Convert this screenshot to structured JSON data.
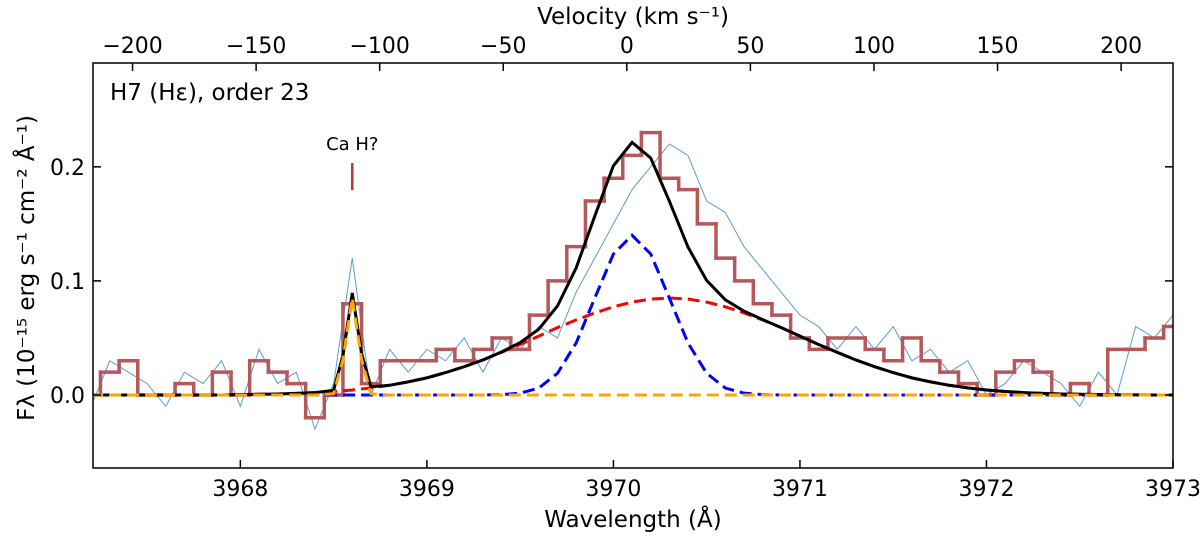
{
  "chart_data": {
    "type": "line",
    "annotation": "H7 (Hε), order 23",
    "xlabel": "Wavelength (Å)",
    "x2label": "Velocity (km s⁻¹)",
    "ylabel": "Fλ (10⁻¹⁵ erg s⁻¹ cm⁻² Å⁻¹)",
    "line_marker": {
      "text": "Ca H?",
      "x": 3968.6,
      "color": "#b03a3a"
    },
    "xlim": [
      3967.21,
      3973.0
    ],
    "xticks": [
      3968,
      3969,
      3970,
      3971,
      3972,
      3973
    ],
    "x2lim": [
      -216,
      221
    ],
    "x2ticks": [
      {
        "value": -200,
        "label": "−200"
      },
      {
        "value": -150,
        "label": "−150"
      },
      {
        "value": -100,
        "label": "−100"
      },
      {
        "value": -50,
        "label": "−50"
      },
      0,
      50,
      100,
      150,
      200
    ],
    "ylim": [
      -0.064,
      0.291
    ],
    "yticks": [
      {
        "value": 0,
        "label": "0.0"
      },
      0.1,
      0.2
    ],
    "observed": [
      {
        "style": "thin",
        "color": "#5b9bd5",
        "x": [
          3967.2,
          3967.3,
          3967.4,
          3967.5,
          3967.6,
          3967.7,
          3967.8,
          3967.9,
          3968.0,
          3968.1,
          3968.2,
          3968.3,
          3968.4,
          3968.5,
          3968.6,
          3968.7,
          3968.8,
          3968.9,
          3969.0,
          3969.1,
          3969.2,
          3969.3,
          3969.4,
          3969.5,
          3969.6,
          3969.7,
          3969.8,
          3969.9,
          3970.0,
          3970.1,
          3970.2,
          3970.3,
          3970.4,
          3970.5,
          3970.6,
          3970.7,
          3970.8,
          3970.9,
          3971.0,
          3971.1,
          3971.2,
          3971.3,
          3971.4,
          3971.5,
          3971.6,
          3971.7,
          3971.8,
          3971.9,
          3972.0,
          3972.1,
          3972.2,
          3972.3,
          3972.4,
          3972.5,
          3972.6,
          3972.7,
          3972.8,
          3972.9,
          3973.0
        ],
        "values": [
          -0.01,
          0.03,
          0.02,
          0.01,
          -0.01,
          0.02,
          0.01,
          0.03,
          -0.01,
          0.04,
          0.01,
          0.02,
          -0.03,
          0.01,
          0.12,
          0.0,
          0.04,
          0.02,
          0.04,
          0.03,
          0.05,
          0.02,
          0.05,
          0.04,
          0.06,
          0.05,
          0.09,
          0.12,
          0.15,
          0.18,
          0.2,
          0.22,
          0.21,
          0.17,
          0.16,
          0.13,
          0.11,
          0.09,
          0.07,
          0.06,
          0.04,
          0.06,
          0.04,
          0.06,
          0.03,
          0.04,
          0.02,
          0.03,
          0.0,
          0.01,
          0.03,
          0.02,
          0.01,
          -0.01,
          0.02,
          0.0,
          0.06,
          0.05,
          0.07
        ]
      },
      {
        "style": "step",
        "color": "#b5585a",
        "x": [
          3967.2,
          3967.3,
          3967.4,
          3967.5,
          3967.6,
          3967.7,
          3967.8,
          3967.9,
          3968.0,
          3968.1,
          3968.2,
          3968.3,
          3968.4,
          3968.5,
          3968.6,
          3968.7,
          3968.8,
          3968.9,
          3969.0,
          3969.1,
          3969.2,
          3969.3,
          3969.4,
          3969.5,
          3969.6,
          3969.7,
          3969.8,
          3969.9,
          3970.0,
          3970.1,
          3970.2,
          3970.3,
          3970.4,
          3970.5,
          3970.6,
          3970.7,
          3970.8,
          3970.9,
          3971.0,
          3971.1,
          3971.2,
          3971.3,
          3971.4,
          3971.5,
          3971.6,
          3971.7,
          3971.8,
          3971.9,
          3972.0,
          3972.1,
          3972.2,
          3972.3,
          3972.4,
          3972.5,
          3972.6,
          3972.7,
          3972.8,
          3972.9,
          3973.0
        ],
        "values": [
          0.0,
          0.02,
          0.03,
          0.0,
          0.0,
          0.01,
          0.0,
          0.02,
          0.0,
          0.03,
          0.02,
          0.01,
          -0.02,
          0.0,
          0.08,
          0.01,
          0.03,
          0.03,
          0.03,
          0.04,
          0.03,
          0.04,
          0.05,
          0.04,
          0.07,
          0.1,
          0.13,
          0.17,
          0.19,
          0.21,
          0.23,
          0.19,
          0.18,
          0.15,
          0.12,
          0.1,
          0.08,
          0.07,
          0.05,
          0.04,
          0.05,
          0.05,
          0.04,
          0.03,
          0.05,
          0.03,
          0.02,
          0.01,
          0.0,
          0.02,
          0.03,
          0.02,
          0.0,
          0.01,
          0.0,
          0.04,
          0.04,
          0.05,
          0.06
        ]
      }
    ],
    "model_x": [
      3967.2,
      3967.3,
      3967.4,
      3967.5,
      3967.6,
      3967.7,
      3967.8,
      3967.9,
      3968.0,
      3968.1,
      3968.2,
      3968.3,
      3968.4,
      3968.5,
      3968.55,
      3968.6,
      3968.65,
      3968.7,
      3968.8,
      3968.9,
      3969.0,
      3969.1,
      3969.2,
      3969.3,
      3969.4,
      3969.5,
      3969.6,
      3969.7,
      3969.8,
      3969.9,
      3970.0,
      3970.1,
      3970.2,
      3970.3,
      3970.4,
      3970.5,
      3970.6,
      3970.7,
      3970.8,
      3970.9,
      3971.0,
      3971.1,
      3971.2,
      3971.3,
      3971.4,
      3971.5,
      3971.6,
      3971.7,
      3971.8,
      3971.9,
      3972.0,
      3972.1,
      3972.2,
      3972.3,
      3972.4,
      3972.5,
      3972.6,
      3972.7,
      3972.8,
      3972.9,
      3973.0
    ],
    "series": [
      {
        "color": "#ff0000",
        "dash": true,
        "values": [
          0,
          0,
          0,
          0,
          0,
          0,
          0,
          0,
          0.0004,
          0.0006,
          0.0009,
          0.0014,
          0.0021,
          0.0031,
          0.0037,
          0.0044,
          0.0053,
          0.0062,
          0.0085,
          0.0115,
          0.015,
          0.0196,
          0.0248,
          0.0307,
          0.0374,
          0.0443,
          0.0516,
          0.059,
          0.0658,
          0.0719,
          0.0773,
          0.0814,
          0.0841,
          0.085,
          0.0841,
          0.0814,
          0.0773,
          0.0719,
          0.0658,
          0.059,
          0.0516,
          0.0443,
          0.0374,
          0.0307,
          0.0248,
          0.0196,
          0.015,
          0.0115,
          0.0085,
          0.0062,
          0.0044,
          0.0031,
          0.0021,
          0.0014,
          0.0009,
          0.0006,
          0.0004,
          0.0002,
          0.0001,
          0,
          0
        ]
      },
      {
        "color": "#0000ff",
        "dash": true,
        "values": [
          0,
          0,
          0,
          0,
          0,
          0,
          0,
          0,
          0,
          0,
          0,
          0,
          0,
          0,
          0,
          0,
          0,
          0,
          0,
          0,
          0,
          0,
          0,
          0,
          0.0003,
          0.0016,
          0.0061,
          0.019,
          0.0455,
          0.0849,
          0.1236,
          0.14,
          0.1236,
          0.0849,
          0.0455,
          0.019,
          0.0061,
          0.0016,
          0.0003,
          0,
          0,
          0,
          0,
          0,
          0,
          0,
          0,
          0,
          0,
          0,
          0,
          0,
          0,
          0,
          0,
          0,
          0,
          0,
          0,
          0,
          0
        ]
      },
      {
        "color": "#000000",
        "dash": false,
        "values": [
          0,
          0,
          0,
          0,
          0,
          0,
          0,
          0,
          0.0004,
          0.0006,
          0.0009,
          0.0014,
          0.0021,
          0.0041,
          0.0347,
          0.0894,
          0.0363,
          0.0072,
          0.0085,
          0.0115,
          0.015,
          0.0196,
          0.0248,
          0.0307,
          0.0377,
          0.0459,
          0.0577,
          0.078,
          0.1113,
          0.1568,
          0.2009,
          0.2214,
          0.2077,
          0.1699,
          0.1296,
          0.1004,
          0.0834,
          0.0735,
          0.0661,
          0.059,
          0.0516,
          0.0443,
          0.0374,
          0.0307,
          0.0248,
          0.0196,
          0.015,
          0.0115,
          0.0085,
          0.0062,
          0.0044,
          0.0031,
          0.0021,
          0.0014,
          0.0009,
          0.0006,
          0.0004,
          0.0002,
          0.0001,
          0,
          0
        ]
      },
      {
        "color": "#ffa500",
        "dash": true,
        "values": [
          0,
          0,
          0,
          0,
          0,
          0,
          0,
          0,
          0,
          0,
          0,
          0,
          0,
          0.001,
          0.031,
          0.085,
          0.031,
          0.001,
          0,
          0,
          0,
          0,
          0,
          0,
          0,
          0,
          0,
          0,
          0,
          0,
          0,
          0,
          0,
          0,
          0,
          0,
          0,
          0,
          0,
          0,
          0,
          0,
          0,
          0,
          0,
          0,
          0,
          0,
          0,
          0,
          0,
          0,
          0,
          0,
          0,
          0,
          0,
          0,
          0,
          0,
          0
        ]
      }
    ]
  }
}
